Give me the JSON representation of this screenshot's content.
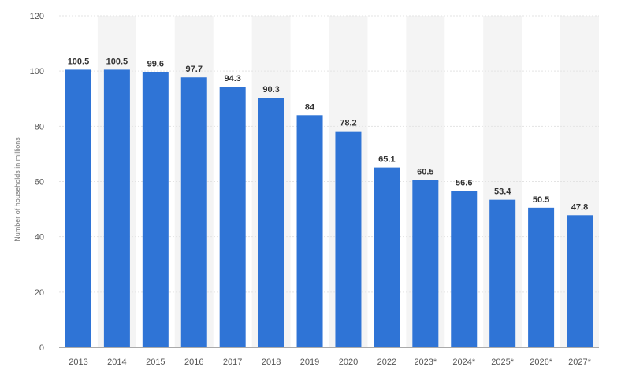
{
  "chart_data": {
    "type": "bar",
    "title": "",
    "xlabel": "",
    "ylabel": "Number of households in millions",
    "ylim": [
      0,
      120
    ],
    "yticks": [
      0,
      20,
      40,
      60,
      80,
      100,
      120
    ],
    "grid": true,
    "legend": "none",
    "categories": [
      "2013",
      "2014",
      "2015",
      "2016",
      "2017",
      "2018",
      "2019",
      "2020",
      "2022",
      "2023*",
      "2024*",
      "2025*",
      "2026*",
      "2027*"
    ],
    "values": [
      100.5,
      100.5,
      99.6,
      97.7,
      94.3,
      90.3,
      84,
      78.2,
      65.1,
      60.5,
      56.6,
      53.4,
      50.5,
      47.8
    ],
    "value_labels": [
      "100.5",
      "100.5",
      "99.6",
      "97.7",
      "94.3",
      "90.3",
      "84",
      "78.2",
      "65.1",
      "60.5",
      "56.6",
      "53.4",
      "50.5",
      "47.8"
    ],
    "colors": {
      "bar": "#2f74d6",
      "band": "#f4f4f4",
      "grid": "#e3e3e3",
      "axis": "#555555"
    }
  }
}
